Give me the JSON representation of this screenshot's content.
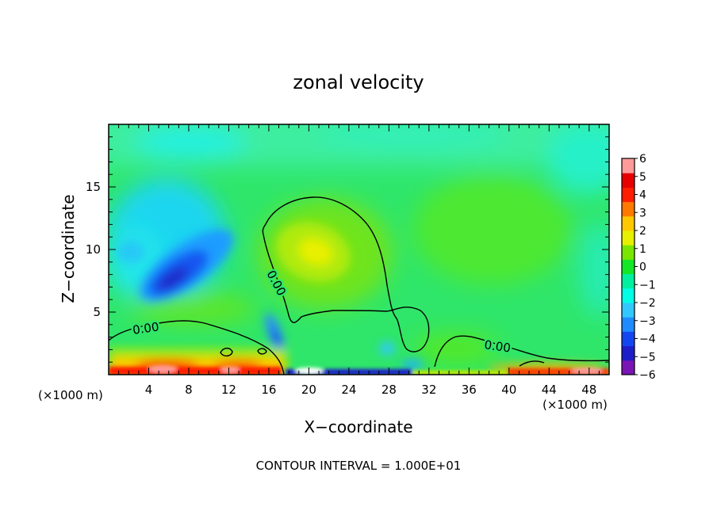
{
  "chart_data": {
    "type": "heatmap",
    "title": "zonal velocity",
    "xlabel": "X−coordinate",
    "ylabel": "Z−coordinate",
    "x_unit_left": "(×1000 m)",
    "x_unit_right": "(×1000 m)",
    "footer": "CONTOUR INTERVAL = 1.000E+01",
    "xlim": [
      0,
      50
    ],
    "ylim": [
      0,
      20
    ],
    "x_ticks": [
      4,
      8,
      12,
      16,
      20,
      24,
      28,
      32,
      36,
      40,
      44,
      48
    ],
    "y_ticks": [
      5,
      10,
      15
    ],
    "colorbar": {
      "min": -6,
      "max": 6,
      "tick_labels": [
        "6",
        "5",
        "4",
        "3",
        "2",
        "1",
        "0",
        "−1",
        "−2",
        "−3",
        "−4",
        "−5",
        "−6"
      ],
      "tick_values": [
        6,
        5,
        4,
        3,
        2,
        1,
        0,
        -1,
        -2,
        -3,
        -4,
        -5,
        -6
      ],
      "colors_low_to_high": [
        "#7a14b4",
        "#1e1ec8",
        "#1446f0",
        "#1e8cff",
        "#32c8ff",
        "#00ffe6",
        "#00f0a0",
        "#14e628",
        "#78e600",
        "#e6f000",
        "#ffc800",
        "#ff7800",
        "#ff1e00",
        "#e60000",
        "#ff9a9a"
      ]
    },
    "features": [
      {
        "kind": "max",
        "label": "positive core",
        "x": 20.5,
        "z": 10,
        "value": 2
      },
      {
        "kind": "min",
        "label": "negative core",
        "x": 7,
        "z": 7.5,
        "value": -4.5
      },
      {
        "kind": "min",
        "label": "negative streak",
        "x": 16.5,
        "z": 3,
        "value": -3
      },
      {
        "kind": "surface_layer",
        "label": "near-surface positive",
        "x_range": [
          0,
          17
        ],
        "z_range": [
          0,
          1.5
        ],
        "value": 5
      },
      {
        "kind": "surface_layer",
        "label": "near-surface negative",
        "x_range": [
          18,
          31
        ],
        "z_range": [
          0,
          0.4
        ],
        "value": -5
      }
    ],
    "contours": [
      {
        "level": 0,
        "label": "0.00",
        "label_at": [
          {
            "x": 4,
            "z": 3.5
          },
          {
            "x": 16,
            "z": 7.5
          },
          {
            "x": 39.5,
            "z": 2.3
          }
        ]
      }
    ]
  }
}
